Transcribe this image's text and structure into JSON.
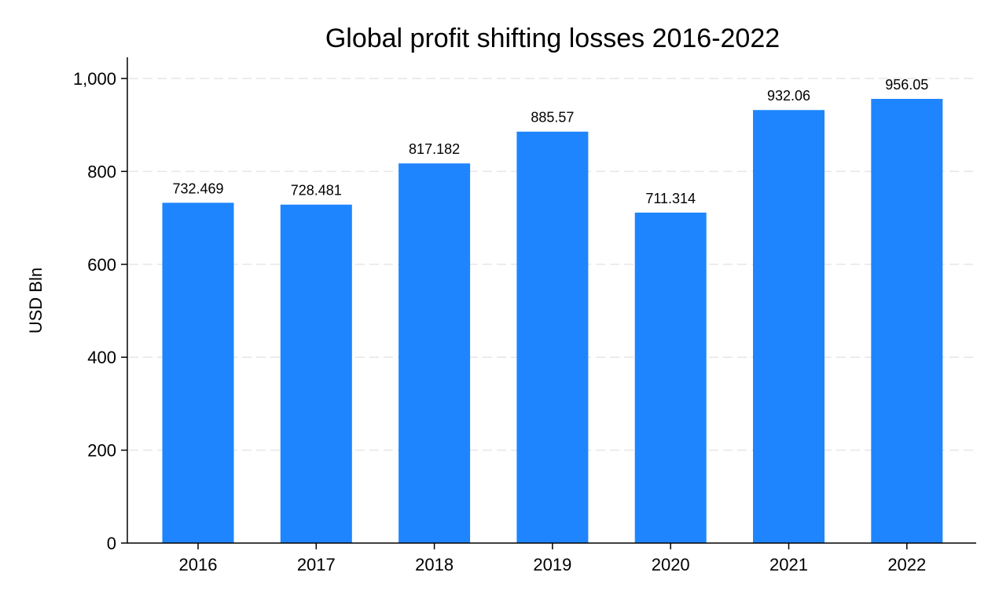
{
  "chart_data": {
    "type": "bar",
    "title": "Global profit shifting losses 2016-2022",
    "xlabel": "",
    "ylabel": "USD Bln",
    "categories": [
      "2016",
      "2017",
      "2018",
      "2019",
      "2020",
      "2021",
      "2022"
    ],
    "values": [
      732.469,
      728.481,
      817.182,
      885.57,
      711.314,
      932.06,
      956.05
    ],
    "data_labels": [
      "732.469",
      "728.481",
      "817.182",
      "885.57",
      "711.314",
      "932.06",
      "956.05"
    ],
    "ylim": [
      0,
      1000
    ],
    "yticks": [
      0,
      200,
      400,
      600,
      800,
      1000
    ],
    "ytick_labels": [
      "0",
      "200",
      "400",
      "600",
      "800",
      "1,000"
    ],
    "grid": true,
    "bar_color": "#1e85ff",
    "grid_color": "#e6e6e6"
  }
}
